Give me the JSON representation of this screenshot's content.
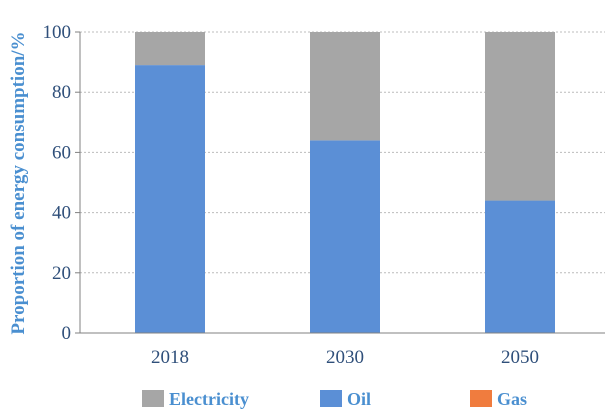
{
  "chart_data": {
    "type": "bar",
    "stacked": true,
    "categories": [
      "2018",
      "2030",
      "2050"
    ],
    "series": [
      {
        "name": "Oil",
        "values": [
          89,
          64,
          44
        ],
        "color": "#5b8fd6"
      },
      {
        "name": "Electricity",
        "values": [
          11,
          36,
          56
        ],
        "color": "#a6a6a6"
      },
      {
        "name": "Gas",
        "values": [
          0,
          0,
          0
        ],
        "color": "#f07c3e"
      }
    ],
    "legend_order": [
      "Electricity",
      "Oil",
      "Gas"
    ],
    "ylabel": "Proportion of energy consumption/%",
    "ylim": [
      0,
      100
    ],
    "yticks": [
      0,
      20,
      40,
      60,
      80,
      100
    ],
    "grid": "horizontal dashed",
    "legend_position": "bottom"
  }
}
